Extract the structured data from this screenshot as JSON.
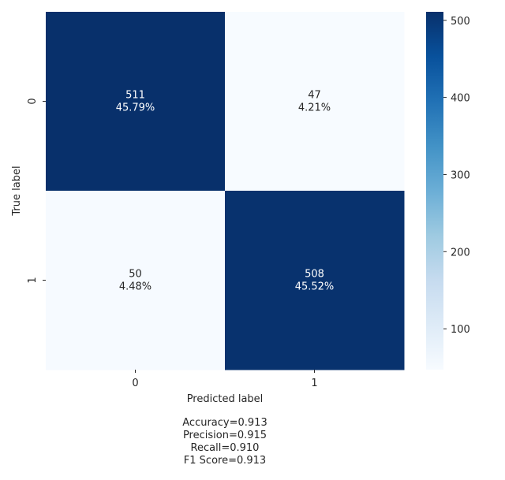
{
  "chart_data": {
    "type": "heatmap",
    "xlabel": "Predicted label",
    "ylabel": "True label",
    "x_categories": [
      "0",
      "1"
    ],
    "y_categories": [
      "0",
      "1"
    ],
    "matrix": [
      [
        511,
        47
      ],
      [
        50,
        508
      ]
    ],
    "percent_labels": [
      [
        "45.79%",
        "4.21%"
      ],
      [
        "4.48%",
        "45.52%"
      ]
    ],
    "colorbar": {
      "min": 47,
      "max": 511,
      "ticks": [
        100,
        200,
        300,
        400,
        500
      ],
      "cmap": "Blues"
    },
    "grid": false
  },
  "stats": {
    "accuracy": "Accuracy=0.913",
    "precision": "Precision=0.915",
    "recall": "Recall=0.910",
    "f1": "F1 Score=0.913"
  }
}
